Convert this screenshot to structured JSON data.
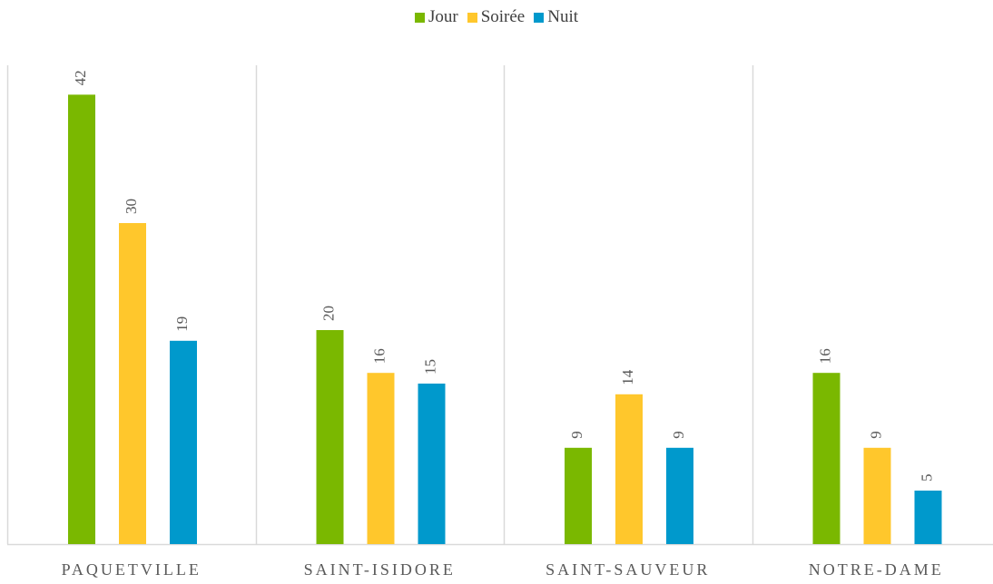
{
  "chart_data": {
    "type": "bar",
    "title": "",
    "xlabel": "",
    "ylabel": "",
    "categories": [
      "PAQUETVILLE",
      "SAINT-ISIDORE",
      "SAINT-SAUVEUR",
      "NOTRE-DAME"
    ],
    "series": [
      {
        "name": "Jour",
        "values": [
          42,
          20,
          9,
          16
        ],
        "color": "#7AB800"
      },
      {
        "name": "Soirée",
        "values": [
          30,
          16,
          14,
          9
        ],
        "color": "#FFC72C"
      },
      {
        "name": "Nuit",
        "values": [
          19,
          15,
          9,
          5
        ],
        "color": "#0099CC"
      }
    ],
    "ylim": [
      0,
      45
    ],
    "legend": "top-center",
    "grid": false,
    "data_labels": true,
    "label_color": "#595959",
    "axis_color": "#D9D9D9"
  }
}
